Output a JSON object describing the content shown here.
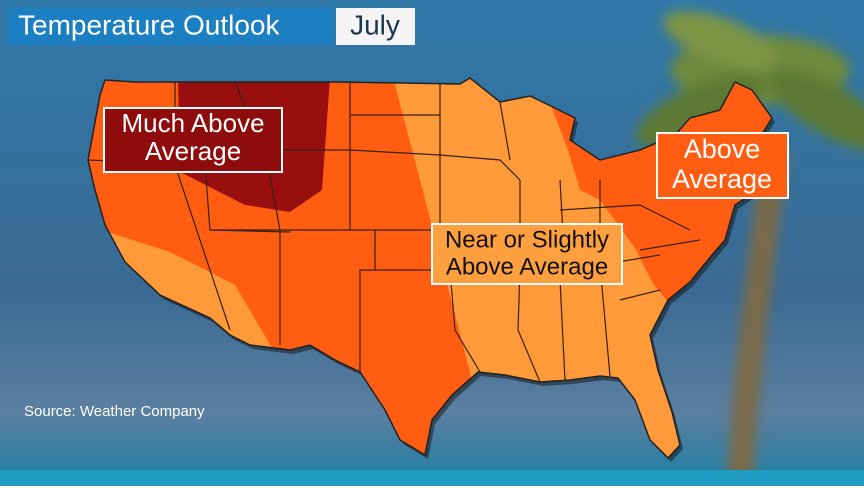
{
  "header": {
    "title": "Temperature Outlook",
    "month": "July"
  },
  "labels": {
    "much_above": [
      "Much Above",
      "Average"
    ],
    "near_slightly_above": [
      "Near or Slightly",
      "Above Average"
    ],
    "above": [
      "Above",
      "Average"
    ]
  },
  "source": "Source: Weather Company"
}
